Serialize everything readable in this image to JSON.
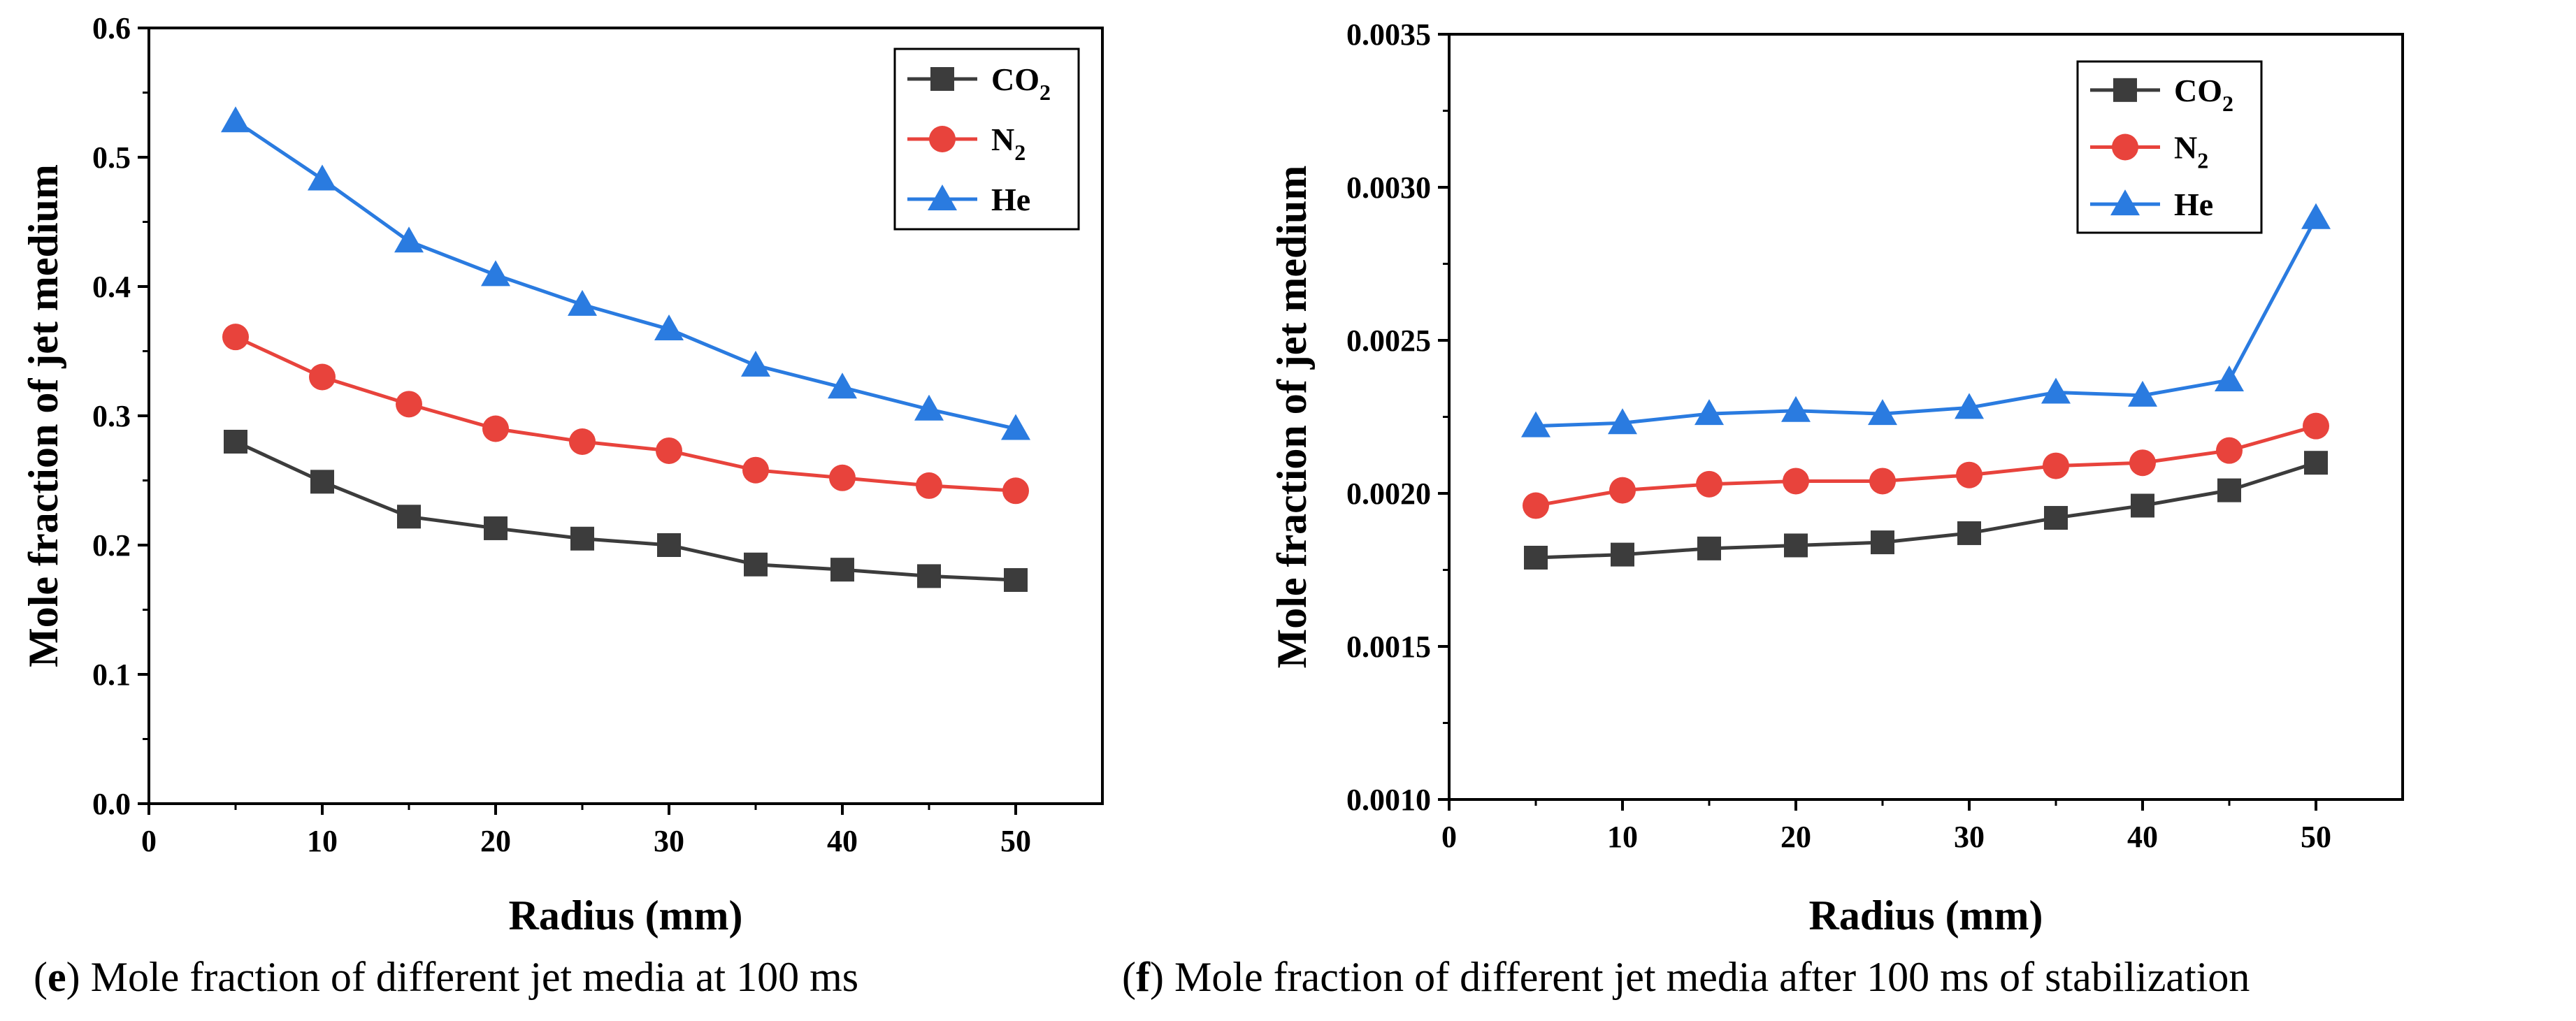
{
  "chart_data": [
    {
      "id": "e",
      "type": "line",
      "xlabel": "Radius (mm)",
      "ylabel": "Mole fraction of jet medium",
      "xlim": [
        0,
        55
      ],
      "ylim": [
        0,
        0.6
      ],
      "xticks": [
        "0",
        "10",
        "20",
        "30",
        "40",
        "50"
      ],
      "yticks": [
        "0.0",
        "0.1",
        "0.2",
        "0.3",
        "0.4",
        "0.5",
        "0.6"
      ],
      "x": [
        5,
        10,
        15,
        20,
        25,
        30,
        35,
        40,
        45,
        50
      ],
      "series": [
        {
          "name": "CO2",
          "label_main": "CO",
          "label_sub": "2",
          "color": "#3c3c3c",
          "marker": "square",
          "values": [
            0.28,
            0.249,
            0.222,
            0.213,
            0.205,
            0.2,
            0.185,
            0.181,
            0.176,
            0.173
          ]
        },
        {
          "name": "N2",
          "label_main": "N",
          "label_sub": "2",
          "color": "#e8433c",
          "marker": "circle",
          "values": [
            0.361,
            0.33,
            0.309,
            0.29,
            0.28,
            0.273,
            0.258,
            0.252,
            0.246,
            0.242
          ]
        },
        {
          "name": "He",
          "label_main": "He",
          "label_sub": "",
          "color": "#2a7be0",
          "marker": "triangle",
          "values": [
            0.528,
            0.483,
            0.435,
            0.409,
            0.386,
            0.367,
            0.339,
            0.322,
            0.305,
            0.29
          ]
        }
      ],
      "legend": "top-right",
      "caption_letter": "e",
      "caption_text": ") Mole fraction of different jet media at 100 ms"
    },
    {
      "id": "f",
      "type": "line",
      "xlabel": "Radius (mm)",
      "ylabel": "Mole fraction of jet medium",
      "xlim": [
        0,
        55
      ],
      "ylim": [
        0.001,
        0.0035
      ],
      "xticks": [
        "0",
        "10",
        "20",
        "30",
        "40",
        "50"
      ],
      "yticks": [
        "0.0010",
        "0.0015",
        "0.0020",
        "0.0025",
        "0.0030",
        "0.0035"
      ],
      "x": [
        5,
        10,
        15,
        20,
        25,
        30,
        35,
        40,
        45,
        50
      ],
      "series": [
        {
          "name": "CO2",
          "label_main": "CO",
          "label_sub": "2",
          "color": "#3c3c3c",
          "marker": "square",
          "values": [
            0.00179,
            0.0018,
            0.00182,
            0.00183,
            0.00184,
            0.00187,
            0.00192,
            0.00196,
            0.00201,
            0.0021
          ]
        },
        {
          "name": "N2",
          "label_main": "N",
          "label_sub": "2",
          "color": "#e8433c",
          "marker": "circle",
          "values": [
            0.00196,
            0.00201,
            0.00203,
            0.00204,
            0.00204,
            0.00206,
            0.00209,
            0.0021,
            0.00214,
            0.00222
          ]
        },
        {
          "name": "He",
          "label_main": "He",
          "label_sub": "",
          "color": "#2a7be0",
          "marker": "triangle",
          "values": [
            0.00222,
            0.00223,
            0.00226,
            0.00227,
            0.00226,
            0.00228,
            0.00233,
            0.00232,
            0.00237,
            0.0029
          ]
        }
      ],
      "legend": "top-right",
      "caption_letter": "f",
      "caption_text": ") Mole fraction of different jet media after 100 ms of stabilization"
    }
  ],
  "caption_open": "("
}
